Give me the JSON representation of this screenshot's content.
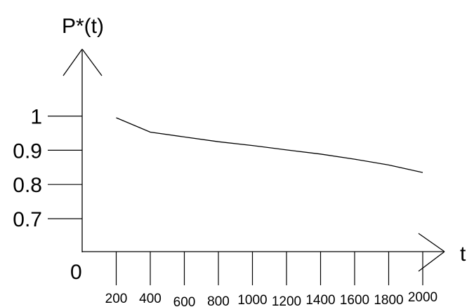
{
  "chart_data": {
    "type": "line",
    "ylabel": "P*(t)",
    "xlabel": "t",
    "origin_label": "0",
    "y_ticks": [
      {
        "value": 1.0,
        "label": "1"
      },
      {
        "value": 0.9,
        "label": "0.9"
      },
      {
        "value": 0.8,
        "label": "0.8"
      },
      {
        "value": 0.7,
        "label": "0.7"
      }
    ],
    "x_ticks": [
      200,
      400,
      600,
      800,
      1000,
      1200,
      1400,
      1600,
      1800,
      2000
    ],
    "x_tick_labels": [
      "200",
      "400",
      "600",
      "800",
      "1000",
      "1200",
      "1400",
      "1600",
      "1800",
      "2000"
    ],
    "series": [
      {
        "x": [
          200,
          400,
          600,
          800,
          1000,
          1200,
          1400,
          1600,
          1800,
          2000
        ],
        "y": [
          0.995,
          0.953,
          0.939,
          0.925,
          0.914,
          0.901,
          0.889,
          0.874,
          0.857,
          0.835
        ]
      }
    ],
    "xlim": [
      0,
      2100
    ],
    "ylim": [
      0.6,
      1.2
    ],
    "grid": false,
    "line_color": "#000000"
  }
}
